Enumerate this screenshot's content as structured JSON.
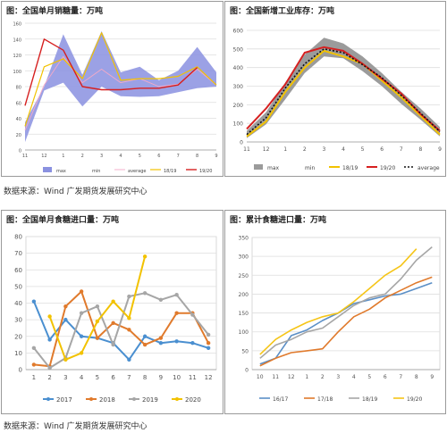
{
  "source_text": "数据来源：Wind  广发期货发展研究中心",
  "colors": {
    "max_band": "#8a91e0",
    "max_band_gray": "#9b9b9b",
    "teal": "#5b8fc6",
    "yellow": "#f2c200",
    "red": "#d62020",
    "orange": "#e07a2c",
    "gray": "#a6a6a6",
    "blue": "#4a8fd0",
    "black": "#111111"
  },
  "chart_data": [
    {
      "id": "c1",
      "type": "area",
      "title": "图：全国单月销糖量：万吨",
      "categories": [
        "11",
        "12",
        "1",
        "2",
        "3",
        "4",
        "5",
        "6",
        "7",
        "8",
        "9"
      ],
      "ylim": [
        0,
        160
      ],
      "yticks": [
        0,
        20,
        40,
        60,
        80,
        100,
        120,
        140,
        160
      ],
      "grid": true,
      "legend_position": "bottom",
      "band": {
        "name": "max",
        "min_name": "min",
        "upper": [
          35,
          80,
          146,
          95,
          150,
          98,
          105,
          88,
          100,
          130,
          98
        ],
        "lower": [
          10,
          75,
          85,
          55,
          80,
          68,
          67,
          68,
          73,
          78,
          80
        ]
      },
      "series": [
        {
          "name": "average",
          "values": [
            25,
            82,
            118,
            85,
            102,
            85,
            90,
            80,
            83,
            102,
            82
          ]
        },
        {
          "name": "18/19",
          "values": [
            30,
            105,
            115,
            90,
            148,
            88,
            90,
            90,
            93,
            105,
            82
          ]
        },
        {
          "name": "19/20",
          "values": [
            56,
            140,
            126,
            80,
            76,
            76,
            78,
            78,
            82,
            104,
            null
          ]
        }
      ],
      "legend": [
        "max",
        "min",
        "average",
        "18/19",
        "19/20"
      ]
    },
    {
      "id": "c2",
      "type": "area",
      "title": "图：全国新增工业库存：万吨",
      "categories": [
        "11",
        "12",
        "1",
        "2",
        "3",
        "4",
        "5",
        "6",
        "7",
        "8",
        "9"
      ],
      "ylim": [
        0,
        600
      ],
      "yticks": [
        0,
        100,
        200,
        300,
        400,
        500,
        600
      ],
      "grid": true,
      "legend_position": "bottom",
      "band": {
        "name": "max",
        "min_name": "min",
        "upper": [
          60,
          160,
          320,
          470,
          560,
          530,
          460,
          370,
          270,
          180,
          80
        ],
        "lower": [
          20,
          95,
          230,
          370,
          460,
          450,
          380,
          300,
          205,
          120,
          30
        ]
      },
      "series": [
        {
          "name": "18/19",
          "values": [
            30,
            110,
            270,
            400,
            490,
            460,
            420,
            330,
            240,
            140,
            40
          ]
        },
        {
          "name": "19/20",
          "values": [
            70,
            180,
            310,
            480,
            510,
            490,
            420,
            340,
            260,
            150,
            60
          ]
        },
        {
          "name": "average",
          "values": [
            40,
            130,
            290,
            420,
            500,
            480,
            415,
            345,
            250,
            155,
            55
          ]
        }
      ],
      "legend": [
        "max",
        "min",
        "18/19",
        "19/20",
        "average"
      ]
    },
    {
      "id": "c3",
      "type": "line",
      "title": "图：全国单月食糖进口量：万吨",
      "categories": [
        "1",
        "2",
        "3",
        "4",
        "5",
        "6",
        "7",
        "8",
        "9",
        "10",
        "11",
        "12"
      ],
      "ylim": [
        0,
        80
      ],
      "yticks": [
        0,
        10,
        20,
        30,
        40,
        50,
        60,
        70,
        80
      ],
      "grid": true,
      "legend_position": "bottom",
      "series": [
        {
          "name": "2017",
          "values": [
            41,
            18,
            30,
            20,
            19,
            16,
            6,
            20,
            16,
            17,
            16,
            13
          ]
        },
        {
          "name": "2018",
          "values": [
            3,
            2,
            38,
            47,
            19,
            28,
            24,
            15,
            19,
            34,
            34,
            16
          ]
        },
        {
          "name": "2019",
          "values": [
            13,
            1,
            7,
            34,
            38,
            15,
            44,
            46,
            42,
            45,
            33,
            21
          ]
        },
        {
          "name": "2020",
          "values": [
            null,
            32,
            6,
            10,
            29,
            41,
            31,
            68,
            null,
            null,
            null,
            null
          ]
        }
      ],
      "legend": [
        "2017",
        "2018",
        "2019",
        "2020"
      ]
    },
    {
      "id": "c4",
      "type": "line",
      "title": "图：累计食糖进口量：万吨",
      "categories": [
        "10",
        "11",
        "12",
        "1",
        "2",
        "3",
        "4",
        "5",
        "6",
        "7",
        "8",
        "9"
      ],
      "ylim": [
        0,
        350
      ],
      "yticks": [
        0,
        50,
        100,
        150,
        200,
        250,
        300,
        350
      ],
      "grid": true,
      "legend_position": "bottom",
      "series": [
        {
          "name": "16/17",
          "values": [
            15,
            30,
            90,
            105,
            130,
            150,
            175,
            185,
            195,
            200,
            215,
            230
          ]
        },
        {
          "name": "17/18",
          "values": [
            10,
            30,
            45,
            50,
            55,
            100,
            140,
            160,
            190,
            210,
            230,
            245
          ]
        },
        {
          "name": "18/19",
          "values": [
            30,
            65,
            80,
            100,
            110,
            140,
            170,
            190,
            200,
            240,
            290,
            325
          ]
        },
        {
          "name": "19/20",
          "values": [
            40,
            80,
            105,
            125,
            140,
            150,
            180,
            215,
            250,
            275,
            320,
            null
          ]
        }
      ],
      "legend": [
        "16/17",
        "17/18",
        "18/19",
        "19/20"
      ]
    }
  ]
}
